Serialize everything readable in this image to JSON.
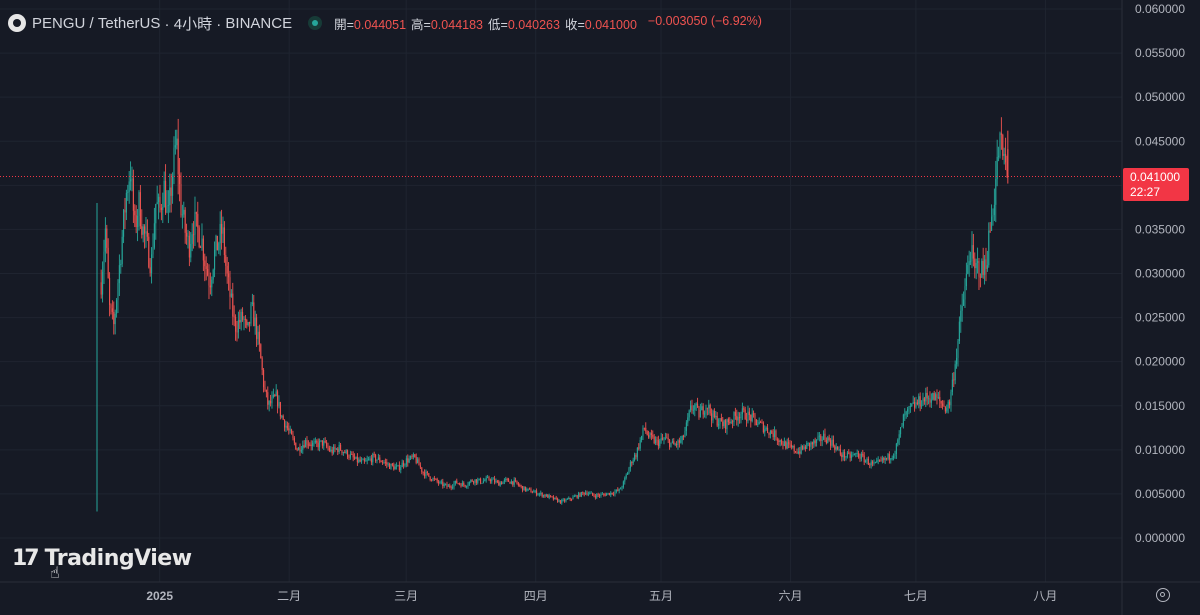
{
  "header": {
    "symbol": "PENGU",
    "separator": " / ",
    "pair": "TetherUS",
    "interval": " · 4小時 · ",
    "exchange": "BINANCE",
    "open_label": "開=",
    "open_value": "0.044051",
    "high_label": "高=",
    "high_value": "0.044183",
    "low_label": "低=",
    "low_value": "0.040263",
    "close_label": "收=",
    "close_value": "0.041000",
    "change": "−0.003050 (−6.92%)"
  },
  "last_price": {
    "value": "0.041000",
    "countdown": "22:27"
  },
  "watermark": "TradingView",
  "icons": {
    "symbol": "pengu-logo-icon",
    "live": "market-open-dot-icon",
    "settings": "gear-icon",
    "watermark": "tradingview-logo-icon"
  },
  "colors": {
    "background": "#161a25",
    "up": "#26a69a",
    "down": "#ef5350",
    "price_line": "#f23645",
    "text": "#d1d4dc",
    "axis_text": "#b2b5be"
  },
  "chart_data": {
    "type": "candlestick",
    "title": "PENGU / TetherUS · 4小時 · BINANCE",
    "ylim": [
      0.0,
      0.06
    ],
    "yticks": [
      "0.060000",
      "0.055000",
      "0.050000",
      "0.045000",
      "0.040000",
      "0.035000",
      "0.030000",
      "0.025000",
      "0.020000",
      "0.015000",
      "0.010000",
      "0.005000",
      "0.000000"
    ],
    "xticks": [
      "2025",
      "二月",
      "三月",
      "四月",
      "五月",
      "六月",
      "七月",
      "八月"
    ],
    "x_start": "2024-12-17",
    "x_end": "2025-07-24",
    "current_price": 0.041,
    "grid": true,
    "series": [
      {
        "name": "PENGU/USDT",
        "price_path": [
          [
            "2024-12-17",
            0.038
          ],
          [
            "2024-12-17",
            0.003
          ],
          [
            "2024-12-18",
            0.029
          ],
          [
            "2024-12-19",
            0.035
          ],
          [
            "2024-12-20",
            0.026
          ],
          [
            "2024-12-21",
            0.024
          ],
          [
            "2024-12-22",
            0.029
          ],
          [
            "2024-12-24",
            0.039
          ],
          [
            "2024-12-25",
            0.042
          ],
          [
            "2024-12-26",
            0.035
          ],
          [
            "2024-12-27",
            0.038
          ],
          [
            "2024-12-28",
            0.035
          ],
          [
            "2024-12-30",
            0.031
          ],
          [
            "2024-12-31",
            0.038
          ],
          [
            "2025-01-01",
            0.037
          ],
          [
            "2025-01-02",
            0.04
          ],
          [
            "2025-01-03",
            0.036
          ],
          [
            "2025-01-04",
            0.041
          ],
          [
            "2025-01-05",
            0.045
          ],
          [
            "2025-01-06",
            0.038
          ],
          [
            "2025-01-07",
            0.035
          ],
          [
            "2025-01-08",
            0.033
          ],
          [
            "2025-01-09",
            0.036
          ],
          [
            "2025-01-11",
            0.034
          ],
          [
            "2025-01-12",
            0.031
          ],
          [
            "2025-01-13",
            0.029
          ],
          [
            "2025-01-14",
            0.032
          ],
          [
            "2025-01-16",
            0.035
          ],
          [
            "2025-01-17",
            0.03
          ],
          [
            "2025-01-18",
            0.027
          ],
          [
            "2025-01-19",
            0.024
          ],
          [
            "2025-01-21",
            0.025
          ],
          [
            "2025-01-22",
            0.023
          ],
          [
            "2025-01-23",
            0.026
          ],
          [
            "2025-01-24",
            0.024
          ],
          [
            "2025-01-25",
            0.021
          ],
          [
            "2025-01-26",
            0.017
          ],
          [
            "2025-01-27",
            0.015
          ],
          [
            "2025-01-29",
            0.016
          ],
          [
            "2025-01-30",
            0.014
          ],
          [
            "2025-01-31",
            0.013
          ],
          [
            "2025-02-01",
            0.012
          ],
          [
            "2025-02-03",
            0.01
          ],
          [
            "2025-02-05",
            0.011
          ],
          [
            "2025-02-07",
            0.0105
          ],
          [
            "2025-02-09",
            0.0108
          ],
          [
            "2025-02-11",
            0.0098
          ],
          [
            "2025-02-13",
            0.0102
          ],
          [
            "2025-02-15",
            0.0095
          ],
          [
            "2025-02-17",
            0.0088
          ],
          [
            "2025-02-19",
            0.0085
          ],
          [
            "2025-02-21",
            0.0091
          ],
          [
            "2025-02-23",
            0.0088
          ],
          [
            "2025-02-25",
            0.0082
          ],
          [
            "2025-02-27",
            0.0079
          ],
          [
            "2025-03-01",
            0.0088
          ],
          [
            "2025-03-03",
            0.0091
          ],
          [
            "2025-03-05",
            0.0075
          ],
          [
            "2025-03-07",
            0.0068
          ],
          [
            "2025-03-09",
            0.0062
          ],
          [
            "2025-03-11",
            0.0058
          ],
          [
            "2025-03-13",
            0.0063
          ],
          [
            "2025-03-15",
            0.006
          ],
          [
            "2025-03-17",
            0.0066
          ],
          [
            "2025-03-19",
            0.0064
          ],
          [
            "2025-03-21",
            0.0067
          ],
          [
            "2025-03-23",
            0.0062
          ],
          [
            "2025-03-25",
            0.0065
          ],
          [
            "2025-03-27",
            0.0063
          ],
          [
            "2025-03-29",
            0.0056
          ],
          [
            "2025-03-31",
            0.0053
          ],
          [
            "2025-04-02",
            0.005
          ],
          [
            "2025-04-04",
            0.0047
          ],
          [
            "2025-04-06",
            0.0043
          ],
          [
            "2025-04-07",
            0.0041
          ],
          [
            "2025-04-09",
            0.0044
          ],
          [
            "2025-04-11",
            0.0048
          ],
          [
            "2025-04-13",
            0.0052
          ],
          [
            "2025-04-15",
            0.0048
          ],
          [
            "2025-04-17",
            0.0049
          ],
          [
            "2025-04-19",
            0.0051
          ],
          [
            "2025-04-21",
            0.0054
          ],
          [
            "2025-04-22",
            0.0062
          ],
          [
            "2025-04-23",
            0.0075
          ],
          [
            "2025-04-24",
            0.0088
          ],
          [
            "2025-04-25",
            0.0095
          ],
          [
            "2025-04-26",
            0.011
          ],
          [
            "2025-04-27",
            0.0125
          ],
          [
            "2025-04-28",
            0.0115
          ],
          [
            "2025-04-30",
            0.0108
          ],
          [
            "2025-05-02",
            0.0112
          ],
          [
            "2025-05-04",
            0.0105
          ],
          [
            "2025-05-06",
            0.011
          ],
          [
            "2025-05-07",
            0.0125
          ],
          [
            "2025-05-08",
            0.0145
          ],
          [
            "2025-05-09",
            0.015
          ],
          [
            "2025-05-10",
            0.014
          ],
          [
            "2025-05-11",
            0.0146
          ],
          [
            "2025-05-12",
            0.0152
          ],
          [
            "2025-05-13",
            0.014
          ],
          [
            "2025-05-14",
            0.0135
          ],
          [
            "2025-05-16",
            0.0128
          ],
          [
            "2025-05-18",
            0.0135
          ],
          [
            "2025-05-20",
            0.0142
          ],
          [
            "2025-05-22",
            0.0138
          ],
          [
            "2025-05-24",
            0.0131
          ],
          [
            "2025-05-26",
            0.0124
          ],
          [
            "2025-05-28",
            0.0118
          ],
          [
            "2025-05-30",
            0.0108
          ],
          [
            "2025-06-01",
            0.0102
          ],
          [
            "2025-06-03",
            0.0098
          ],
          [
            "2025-06-05",
            0.0105
          ],
          [
            "2025-06-07",
            0.0108
          ],
          [
            "2025-06-09",
            0.0115
          ],
          [
            "2025-06-11",
            0.0108
          ],
          [
            "2025-06-13",
            0.0095
          ],
          [
            "2025-06-15",
            0.0092
          ],
          [
            "2025-06-17",
            0.0095
          ],
          [
            "2025-06-19",
            0.0088
          ],
          [
            "2025-06-21",
            0.0082
          ],
          [
            "2025-06-22",
            0.0085
          ],
          [
            "2025-06-24",
            0.009
          ],
          [
            "2025-06-26",
            0.0098
          ],
          [
            "2025-06-27",
            0.0115
          ],
          [
            "2025-06-28",
            0.0135
          ],
          [
            "2025-06-30",
            0.0148
          ],
          [
            "2025-07-02",
            0.0155
          ],
          [
            "2025-07-04",
            0.016
          ],
          [
            "2025-07-06",
            0.0158
          ],
          [
            "2025-07-08",
            0.0148
          ],
          [
            "2025-07-09",
            0.0152
          ],
          [
            "2025-07-10",
            0.0185
          ],
          [
            "2025-07-11",
            0.022
          ],
          [
            "2025-07-12",
            0.026
          ],
          [
            "2025-07-13",
            0.029
          ],
          [
            "2025-07-14",
            0.033
          ],
          [
            "2025-07-15",
            0.03
          ],
          [
            "2025-07-16",
            0.031
          ],
          [
            "2025-07-17",
            0.03
          ],
          [
            "2025-07-18",
            0.032
          ],
          [
            "2025-07-19",
            0.036
          ],
          [
            "2025-07-20",
            0.04
          ],
          [
            "2025-07-21",
            0.045
          ],
          [
            "2025-07-22",
            0.043
          ],
          [
            "2025-07-23",
            0.041
          ]
        ]
      }
    ]
  }
}
